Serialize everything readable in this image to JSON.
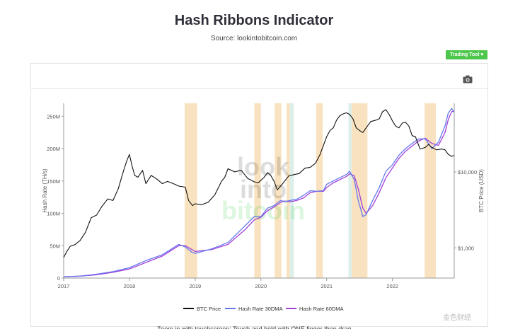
{
  "header": {
    "title": "Hash Ribbons Indicator",
    "source": "Source: lookintobitcoin.com"
  },
  "toolbar": {
    "trading_tool_label": "Trading Tool ▾",
    "camera_icon": "camera-icon"
  },
  "footer": {
    "text": "Zoom in with touchscreen: Touch and hold with ONE finger then drag"
  },
  "watermark": {
    "text": "金色财经"
  },
  "colors": {
    "btc": "#111111",
    "hash30": "#6677ee",
    "hash60": "#a040d8",
    "band": "#f8ddb4",
    "band_alt": "#d6ece6"
  },
  "chart_data": {
    "type": "line",
    "title": "Hash Ribbons Indicator",
    "xlabel": "",
    "ylabel_left": "Hash Rate (TH/s)",
    "ylabel_right": "BTC Price (USD)",
    "xlim": [
      2017.0,
      2022.94
    ],
    "ylim_left": [
      0,
      270
    ],
    "ylim_right_log": [
      400,
      80000
    ],
    "x_ticks": [
      {
        "x": 2017,
        "label": "2017"
      },
      {
        "x": 2018,
        "label": "2018"
      },
      {
        "x": 2019,
        "label": "2019"
      },
      {
        "x": 2020,
        "label": "2020"
      },
      {
        "x": 2021,
        "label": "2021"
      },
      {
        "x": 2022,
        "label": "2022"
      }
    ],
    "y_left_ticks": [
      {
        "v": 0,
        "label": "0"
      },
      {
        "v": 50,
        "label": "50M"
      },
      {
        "v": 100,
        "label": "100M"
      },
      {
        "v": 150,
        "label": "150M"
      },
      {
        "v": 200,
        "label": "200M"
      },
      {
        "v": 250,
        "label": "250M"
      }
    ],
    "y_right_ticks": [
      {
        "v": 1000,
        "label": "$1,000"
      },
      {
        "v": 10000,
        "label": "$10,000"
      }
    ],
    "legend": [
      {
        "name": "BTC Price",
        "color": "#111111"
      },
      {
        "name": "Hash Rate 30DMA",
        "color": "#6677ee"
      },
      {
        "name": "Hash Rate 60DMA",
        "color": "#a040d8"
      }
    ],
    "capitulation_bands": [
      {
        "start": 2018.84,
        "end": 2019.03,
        "color": "#f8ddb4"
      },
      {
        "start": 2019.9,
        "end": 2020.0,
        "color": "#f8ddb4"
      },
      {
        "start": 2020.21,
        "end": 2020.31,
        "color": "#f8ddb4"
      },
      {
        "start": 2020.39,
        "end": 2020.44,
        "color": "#f8ddb4"
      },
      {
        "start": 2020.44,
        "end": 2020.5,
        "color": "#d6ece6"
      },
      {
        "start": 2020.84,
        "end": 2020.94,
        "color": "#f8ddb4"
      },
      {
        "start": 2021.33,
        "end": 2021.38,
        "color": "#d6ece6"
      },
      {
        "start": 2021.38,
        "end": 2021.62,
        "color": "#f8ddb4"
      },
      {
        "start": 2022.49,
        "end": 2022.66,
        "color": "#f8ddb4"
      }
    ],
    "series": [
      {
        "name": "BTC Price",
        "axis": "right",
        "x": [
          2017.0,
          2017.05,
          2017.1,
          2017.17,
          2017.25,
          2017.33,
          2017.42,
          2017.5,
          2017.58,
          2017.67,
          2017.75,
          2017.83,
          2017.92,
          2017.96,
          2018.0,
          2018.04,
          2018.08,
          2018.13,
          2018.2,
          2018.25,
          2018.33,
          2018.42,
          2018.5,
          2018.58,
          2018.67,
          2018.75,
          2018.85,
          2018.9,
          2018.96,
          2019.0,
          2019.1,
          2019.2,
          2019.3,
          2019.4,
          2019.45,
          2019.5,
          2019.6,
          2019.7,
          2019.8,
          2019.9,
          2019.96,
          2020.05,
          2020.1,
          2020.15,
          2020.2,
          2020.25,
          2020.33,
          2020.42,
          2020.5,
          2020.58,
          2020.67,
          2020.75,
          2020.83,
          2020.9,
          2021.0,
          2021.05,
          2021.1,
          2021.15,
          2021.2,
          2021.25,
          2021.3,
          2021.35,
          2021.4,
          2021.45,
          2021.5,
          2021.55,
          2021.6,
          2021.67,
          2021.75,
          2021.8,
          2021.85,
          2021.9,
          2021.95,
          2022.0,
          2022.05,
          2022.1,
          2022.15,
          2022.2,
          2022.25,
          2022.3,
          2022.35,
          2022.42,
          2022.5,
          2022.55,
          2022.6,
          2022.67,
          2022.75,
          2022.8,
          2022.85,
          2022.9,
          2022.94
        ],
        "values": [
          750,
          900,
          1050,
          1100,
          1250,
          1600,
          2500,
          2700,
          3500,
          4400,
          4200,
          6000,
          11000,
          14000,
          17000,
          12000,
          9000,
          8500,
          10500,
          7000,
          9000,
          8000,
          7000,
          7500,
          7000,
          6500,
          6300,
          4200,
          3600,
          3800,
          3700,
          4000,
          5000,
          7500,
          8500,
          11000,
          10000,
          10500,
          8200,
          7400,
          7200,
          8500,
          9800,
          9000,
          7500,
          5800,
          7000,
          8800,
          9200,
          9500,
          11200,
          11500,
          13000,
          17000,
          29000,
          35000,
          38000,
          48000,
          55000,
          58000,
          60000,
          57000,
          50000,
          38000,
          35000,
          33000,
          38000,
          46000,
          48000,
          50000,
          62000,
          66000,
          57000,
          47000,
          40000,
          38000,
          44000,
          45000,
          40000,
          30000,
          29000,
          20000,
          21000,
          23000,
          21000,
          19500,
          20000,
          19500,
          17000,
          16000,
          16500
        ]
      },
      {
        "name": "Hash Rate 30DMA",
        "axis": "left",
        "x": [
          2017.0,
          2017.25,
          2017.5,
          2017.75,
          2018.0,
          2018.25,
          2018.5,
          2018.75,
          2018.85,
          2018.95,
          2019.0,
          2019.25,
          2019.5,
          2019.75,
          2019.9,
          2020.0,
          2020.1,
          2020.2,
          2020.3,
          2020.35,
          2020.45,
          2020.55,
          2020.65,
          2020.75,
          2020.85,
          2020.95,
          2021.0,
          2021.1,
          2021.2,
          2021.3,
          2021.35,
          2021.42,
          2021.48,
          2021.55,
          2021.6,
          2021.7,
          2021.8,
          2021.9,
          2022.0,
          2022.1,
          2022.2,
          2022.3,
          2022.4,
          2022.5,
          2022.6,
          2022.7,
          2022.8,
          2022.85,
          2022.9,
          2022.94
        ],
        "values": [
          2,
          3,
          6,
          10,
          16,
          27,
          36,
          52,
          48,
          40,
          38,
          45,
          55,
          80,
          95,
          95,
          108,
          112,
          120,
          118,
          120,
          122,
          128,
          135,
          134,
          135,
          145,
          150,
          155,
          160,
          165,
          152,
          120,
          95,
          98,
          120,
          140,
          165,
          175,
          190,
          200,
          208,
          215,
          215,
          200,
          210,
          235,
          255,
          262,
          256
        ]
      },
      {
        "name": "Hash Rate 60DMA",
        "axis": "left",
        "x": [
          2017.0,
          2017.25,
          2017.5,
          2017.75,
          2018.0,
          2018.25,
          2018.5,
          2018.75,
          2018.85,
          2018.95,
          2019.0,
          2019.25,
          2019.5,
          2019.75,
          2019.9,
          2020.0,
          2020.1,
          2020.2,
          2020.3,
          2020.35,
          2020.45,
          2020.55,
          2020.65,
          2020.75,
          2020.85,
          2020.95,
          2021.0,
          2021.1,
          2021.2,
          2021.3,
          2021.35,
          2021.42,
          2021.48,
          2021.55,
          2021.6,
          2021.7,
          2021.8,
          2021.9,
          2022.0,
          2022.1,
          2022.2,
          2022.3,
          2022.4,
          2022.5,
          2022.6,
          2022.7,
          2022.8,
          2022.85,
          2022.9,
          2022.94
        ],
        "values": [
          2,
          3,
          5,
          9,
          14,
          24,
          34,
          50,
          50,
          44,
          41,
          44,
          52,
          74,
          90,
          94,
          104,
          110,
          117,
          119,
          118,
          120,
          124,
          132,
          134,
          134,
          140,
          147,
          152,
          157,
          161,
          158,
          138,
          108,
          100,
          112,
          132,
          155,
          170,
          185,
          196,
          204,
          212,
          216,
          208,
          205,
          225,
          245,
          257,
          258
        ]
      }
    ]
  }
}
